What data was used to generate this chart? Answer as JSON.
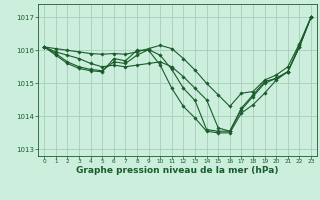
{
  "background_color": "#cceedd",
  "grid_color": "#aaccbb",
  "line_color": "#1a5c2a",
  "marker_color": "#1a5c2a",
  "xlabel": "Graphe pression niveau de la mer (hPa)",
  "xlabel_fontsize": 6.5,
  "xlim": [
    -0.5,
    23.5
  ],
  "ylim": [
    1012.8,
    1017.4
  ],
  "yticks": [
    1013,
    1014,
    1015,
    1016,
    1017
  ],
  "xticks": [
    0,
    1,
    2,
    3,
    4,
    5,
    6,
    7,
    8,
    9,
    10,
    11,
    12,
    13,
    14,
    15,
    16,
    17,
    18,
    19,
    20,
    21,
    22,
    23
  ],
  "series": [
    [
      1016.1,
      1015.95,
      1015.85,
      1015.75,
      1015.6,
      1015.5,
      1015.55,
      1015.5,
      1015.55,
      1015.6,
      1015.65,
      1015.5,
      1015.2,
      1014.85,
      1014.5,
      1013.65,
      1013.55,
      1014.25,
      1014.65,
      1015.05,
      1015.15,
      1015.35,
      1016.15,
      1017.0
    ],
    [
      1016.1,
      1015.9,
      1015.65,
      1015.5,
      1015.42,
      1015.38,
      1015.65,
      1015.6,
      1015.85,
      1016.02,
      1015.85,
      1015.42,
      1014.85,
      1014.48,
      1013.6,
      1013.55,
      1013.55,
      1014.2,
      1014.6,
      1015.0,
      1015.15,
      1015.35,
      1016.1,
      1017.0
    ],
    [
      1016.1,
      1015.85,
      1015.6,
      1015.45,
      1015.38,
      1015.35,
      1015.75,
      1015.68,
      1016.0,
      1016.0,
      1015.55,
      1014.85,
      1014.3,
      1013.95,
      1013.55,
      1013.5,
      1013.5,
      1014.1,
      1014.35,
      1014.7,
      1015.1,
      1015.35,
      1016.1,
      1017.0
    ],
    [
      1016.1,
      1016.05,
      1016.0,
      1015.95,
      1015.9,
      1015.88,
      1015.9,
      1015.88,
      1015.95,
      1016.05,
      1016.15,
      1016.05,
      1015.75,
      1015.4,
      1015.0,
      1014.65,
      1014.3,
      1014.7,
      1014.75,
      1015.1,
      1015.25,
      1015.5,
      1016.2,
      1017.0
    ]
  ]
}
